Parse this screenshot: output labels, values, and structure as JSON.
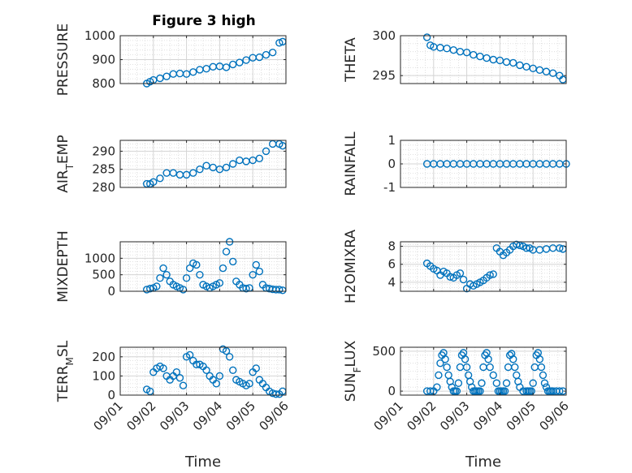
{
  "title": "Figure 3 high",
  "marker_color": "#0072BD",
  "chart_data": [
    {
      "type": "scatter",
      "ylabel": "PRESSURE",
      "ylim": [
        800,
        1000
      ],
      "yticks": [
        800,
        900,
        1000
      ],
      "xticks": [
        "09/01",
        "09/02",
        "09/03",
        "09/04",
        "09/05",
        "09/06"
      ],
      "xlabel": "",
      "grid": true,
      "x": [
        1.8,
        1.9,
        2.0,
        2.2,
        2.4,
        2.6,
        2.8,
        3.0,
        3.2,
        3.4,
        3.6,
        3.8,
        4.0,
        4.2,
        4.4,
        4.6,
        4.8,
        5.0,
        5.2,
        5.4,
        5.6,
        5.8,
        5.9
      ],
      "y": [
        800,
        808,
        815,
        822,
        830,
        840,
        842,
        840,
        848,
        858,
        862,
        870,
        872,
        868,
        880,
        888,
        898,
        908,
        910,
        920,
        930,
        970,
        975
      ]
    },
    {
      "type": "scatter",
      "ylabel": "THETA",
      "ylim": [
        294,
        300
      ],
      "yticks": [
        295,
        300
      ],
      "xticks": [
        "09/01",
        "09/02",
        "09/03",
        "09/04",
        "09/05",
        "09/06"
      ],
      "xlabel": "",
      "grid": true,
      "x": [
        1.8,
        1.9,
        2.0,
        2.2,
        2.4,
        2.6,
        2.8,
        3.0,
        3.2,
        3.4,
        3.6,
        3.8,
        4.0,
        4.2,
        4.4,
        4.6,
        4.8,
        5.0,
        5.2,
        5.4,
        5.6,
        5.8,
        5.9
      ],
      "y": [
        299.8,
        298.8,
        298.6,
        298.5,
        298.4,
        298.2,
        298.0,
        297.9,
        297.6,
        297.4,
        297.2,
        297.0,
        296.9,
        296.7,
        296.6,
        296.3,
        296.1,
        295.9,
        295.7,
        295.5,
        295.3,
        295.0,
        294.5
      ]
    },
    {
      "type": "scatter",
      "ylabel": "AIR_TEMP",
      "ylim": [
        280,
        293
      ],
      "yticks": [
        280,
        285,
        290
      ],
      "xticks": [
        "09/01",
        "09/02",
        "09/03",
        "09/04",
        "09/05",
        "09/06"
      ],
      "xlabel": "",
      "grid": true,
      "x": [
        1.8,
        1.9,
        2.0,
        2.2,
        2.4,
        2.6,
        2.8,
        3.0,
        3.2,
        3.4,
        3.6,
        3.8,
        4.0,
        4.2,
        4.4,
        4.6,
        4.8,
        5.0,
        5.2,
        5.4,
        5.6,
        5.8,
        5.9
      ],
      "y": [
        281,
        281,
        281.5,
        282.5,
        284,
        284,
        283.5,
        283.5,
        284,
        285,
        286,
        285.5,
        285,
        285.5,
        286.5,
        287.5,
        287.2,
        287.5,
        288,
        290,
        292,
        292,
        291.5
      ]
    },
    {
      "type": "scatter",
      "ylabel": "RAINFALL",
      "ylim": [
        -1,
        1
      ],
      "yticks": [
        -1,
        0,
        1
      ],
      "xticks": [
        "09/01",
        "09/02",
        "09/03",
        "09/04",
        "09/05",
        "09/06"
      ],
      "xlabel": "",
      "grid": true,
      "x": [
        1.8,
        2.0,
        2.2,
        2.4,
        2.6,
        2.8,
        3.0,
        3.2,
        3.4,
        3.6,
        3.8,
        4.0,
        4.2,
        4.4,
        4.6,
        4.8,
        5.0,
        5.2,
        5.4,
        5.6,
        5.8,
        6.0
      ],
      "y": [
        0,
        0,
        0,
        0,
        0,
        0,
        0,
        0,
        0,
        0,
        0,
        0,
        0,
        0,
        0,
        0,
        0,
        0,
        0,
        0,
        0,
        0
      ]
    },
    {
      "type": "scatter",
      "ylabel": "MIXDEPTH",
      "ylim": [
        0,
        1500
      ],
      "yticks": [
        0,
        500,
        1000
      ],
      "xticks": [
        "09/01",
        "09/02",
        "09/03",
        "09/04",
        "09/05",
        "09/06"
      ],
      "xlabel": "",
      "grid": true,
      "x": [
        1.8,
        1.9,
        2.0,
        2.1,
        2.2,
        2.3,
        2.4,
        2.5,
        2.6,
        2.7,
        2.8,
        2.9,
        3.0,
        3.1,
        3.2,
        3.3,
        3.4,
        3.5,
        3.6,
        3.7,
        3.8,
        3.9,
        4.0,
        4.1,
        4.2,
        4.3,
        4.4,
        4.5,
        4.6,
        4.7,
        4.8,
        4.9,
        5.0,
        5.1,
        5.2,
        5.3,
        5.4,
        5.5,
        5.6,
        5.7,
        5.8,
        5.9
      ],
      "y": [
        50,
        80,
        100,
        150,
        400,
        700,
        500,
        300,
        200,
        150,
        100,
        50,
        400,
        700,
        850,
        800,
        500,
        200,
        150,
        100,
        150,
        200,
        250,
        700,
        1200,
        1500,
        900,
        300,
        200,
        100,
        80,
        100,
        500,
        800,
        600,
        200,
        100,
        80,
        60,
        50,
        50,
        30
      ]
    },
    {
      "type": "scatter",
      "ylabel": "H2OMIXRA",
      "ylim": [
        3,
        8.5
      ],
      "yticks": [
        4,
        6,
        8
      ],
      "xticks": [
        "09/01",
        "09/02",
        "09/03",
        "09/04",
        "09/05",
        "09/06"
      ],
      "xlabel": "",
      "grid": true,
      "x": [
        1.8,
        1.9,
        2.0,
        2.1,
        2.2,
        2.3,
        2.4,
        2.5,
        2.6,
        2.7,
        2.8,
        2.9,
        3.0,
        3.1,
        3.2,
        3.3,
        3.4,
        3.5,
        3.6,
        3.7,
        3.8,
        3.9,
        4.0,
        4.1,
        4.2,
        4.3,
        4.4,
        4.5,
        4.6,
        4.7,
        4.8,
        4.9,
        5.0,
        5.2,
        5.4,
        5.6,
        5.8,
        5.9
      ],
      "y": [
        6.1,
        5.8,
        5.5,
        5.3,
        4.8,
        5.2,
        5.0,
        4.6,
        4.5,
        4.8,
        5.0,
        4.3,
        3.3,
        3.8,
        3.6,
        3.8,
        4.0,
        4.2,
        4.5,
        4.8,
        4.9,
        7.8,
        7.4,
        7.0,
        7.3,
        7.6,
        8.0,
        8.2,
        8.1,
        8.0,
        7.8,
        7.8,
        7.6,
        7.6,
        7.7,
        7.8,
        7.8,
        7.7
      ]
    },
    {
      "type": "scatter",
      "ylabel": "TERR_MSL",
      "xlabel": "Time",
      "ylim": [
        0,
        250
      ],
      "yticks": [
        0,
        100,
        200
      ],
      "xticks": [
        "09/01",
        "09/02",
        "09/03",
        "09/04",
        "09/05",
        "09/06"
      ],
      "grid": true,
      "x": [
        1.8,
        1.9,
        2.0,
        2.1,
        2.2,
        2.3,
        2.4,
        2.5,
        2.6,
        2.7,
        2.8,
        2.9,
        3.0,
        3.1,
        3.2,
        3.3,
        3.4,
        3.5,
        3.6,
        3.7,
        3.8,
        3.9,
        4.0,
        4.1,
        4.2,
        4.3,
        4.4,
        4.5,
        4.6,
        4.7,
        4.8,
        4.9,
        5.0,
        5.1,
        5.2,
        5.3,
        5.4,
        5.5,
        5.6,
        5.7,
        5.8,
        5.9
      ],
      "y": [
        30,
        20,
        120,
        140,
        150,
        140,
        100,
        80,
        100,
        120,
        90,
        50,
        200,
        210,
        180,
        160,
        160,
        150,
        130,
        100,
        80,
        60,
        100,
        240,
        230,
        200,
        130,
        80,
        70,
        60,
        50,
        60,
        120,
        140,
        80,
        60,
        40,
        20,
        10,
        5,
        5,
        20
      ]
    },
    {
      "type": "scatter",
      "ylabel": "SUN_FLUX",
      "xlabel": "Time",
      "ylim": [
        -50,
        550
      ],
      "yticks": [
        0,
        500
      ],
      "xticks": [
        "09/01",
        "09/02",
        "09/03",
        "09/04",
        "09/05",
        "09/06"
      ],
      "grid": true,
      "x": [
        1.8,
        1.9,
        2.0,
        2.1,
        2.15,
        2.2,
        2.25,
        2.3,
        2.35,
        2.4,
        2.45,
        2.5,
        2.55,
        2.6,
        2.65,
        2.7,
        2.75,
        2.8,
        2.85,
        2.9,
        2.95,
        3.0,
        3.05,
        3.1,
        3.15,
        3.2,
        3.25,
        3.3,
        3.35,
        3.4,
        3.45,
        3.5,
        3.55,
        3.6,
        3.65,
        3.7,
        3.8,
        3.9,
        3.95,
        4.0,
        4.05,
        4.1,
        4.15,
        4.2,
        4.25,
        4.3,
        4.35,
        4.4,
        4.45,
        4.5,
        4.55,
        4.6,
        4.7,
        4.8,
        4.85,
        4.9,
        4.95,
        5.0,
        5.05,
        5.1,
        5.15,
        5.2,
        5.25,
        5.3,
        5.35,
        5.4,
        5.45,
        5.5,
        5.55,
        5.6,
        5.7,
        5.8,
        5.9
      ],
      "y": [
        0,
        0,
        0,
        50,
        200,
        350,
        450,
        480,
        400,
        300,
        200,
        120,
        50,
        0,
        0,
        0,
        100,
        300,
        450,
        480,
        400,
        300,
        200,
        120,
        50,
        0,
        0,
        0,
        0,
        0,
        100,
        300,
        450,
        480,
        400,
        300,
        200,
        100,
        0,
        0,
        0,
        0,
        0,
        100,
        300,
        450,
        470,
        400,
        300,
        200,
        120,
        50,
        0,
        0,
        0,
        0,
        0,
        100,
        300,
        450,
        480,
        400,
        300,
        200,
        100,
        50,
        0,
        0,
        0,
        0,
        0,
        0,
        0
      ]
    }
  ]
}
